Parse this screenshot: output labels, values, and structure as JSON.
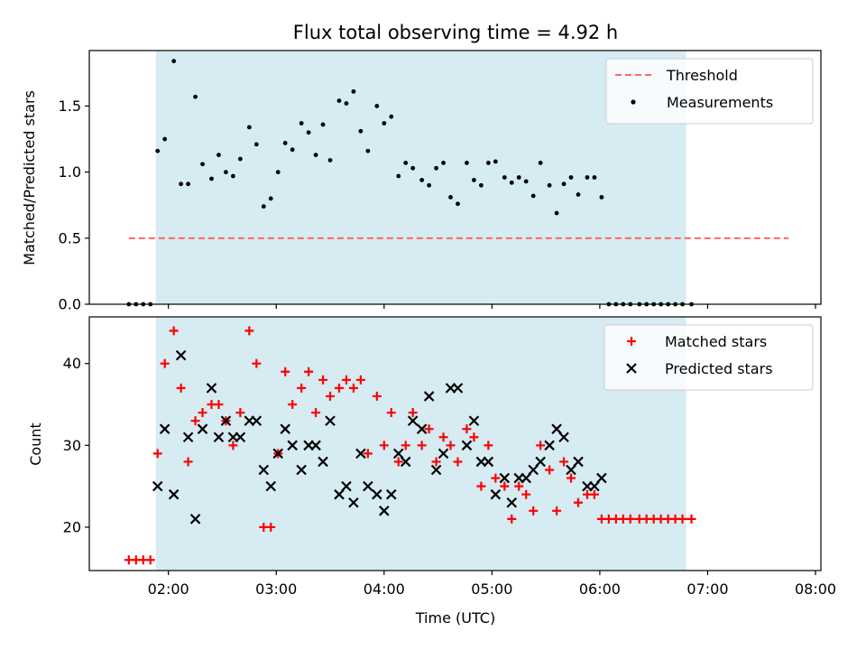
{
  "chart_data": [
    {
      "type": "scatter",
      "title": "Flux total observing time = 4.92 h",
      "xlabel": "",
      "ylabel": "Matched/Predicted stars",
      "xlim": [
        "01:16",
        "08:03"
      ],
      "ylim": [
        0,
        1.92
      ],
      "y_ticks": [
        0.0,
        0.5,
        1.0,
        1.5
      ],
      "y_tick_labels": [
        "0.0",
        "0.5",
        "1.0",
        "1.5"
      ],
      "grid": false,
      "legend_position": "top-right",
      "shaded_interval": {
        "start": "01:53",
        "end": "06:48",
        "color": "#add8e6"
      },
      "threshold": {
        "name": "Threshold",
        "value": 0.5,
        "x": [
          "01:38",
          "07:45"
        ],
        "color": "#ff6666",
        "style": "dashed"
      },
      "series": [
        {
          "name": "Measurements",
          "marker": "dot",
          "color": "#000000",
          "points": [
            [
              "01:38",
              0.0
            ],
            [
              "01:42",
              0.0
            ],
            [
              "01:46",
              0.0
            ],
            [
              "01:50",
              0.0
            ],
            [
              "01:54",
              1.16
            ],
            [
              "01:58",
              1.25
            ],
            [
              "02:03",
              1.84
            ],
            [
              "02:07",
              0.91
            ],
            [
              "02:11",
              0.91
            ],
            [
              "02:15",
              1.57
            ],
            [
              "02:19",
              1.06
            ],
            [
              "02:24",
              0.95
            ],
            [
              "02:28",
              1.13
            ],
            [
              "02:32",
              1.0
            ],
            [
              "02:36",
              0.97
            ],
            [
              "02:40",
              1.1
            ],
            [
              "02:45",
              1.34
            ],
            [
              "02:49",
              1.21
            ],
            [
              "02:53",
              0.74
            ],
            [
              "02:57",
              0.8
            ],
            [
              "03:01",
              1.0
            ],
            [
              "03:05",
              1.22
            ],
            [
              "03:09",
              1.17
            ],
            [
              "03:14",
              1.37
            ],
            [
              "03:18",
              1.3
            ],
            [
              "03:22",
              1.13
            ],
            [
              "03:26",
              1.36
            ],
            [
              "03:30",
              1.09
            ],
            [
              "03:35",
              1.54
            ],
            [
              "03:39",
              1.52
            ],
            [
              "03:43",
              1.61
            ],
            [
              "03:47",
              1.31
            ],
            [
              "03:51",
              1.16
            ],
            [
              "03:56",
              1.5
            ],
            [
              "04:00",
              1.37
            ],
            [
              "04:04",
              1.42
            ],
            [
              "04:08",
              0.97
            ],
            [
              "04:12",
              1.07
            ],
            [
              "04:16",
              1.03
            ],
            [
              "04:21",
              0.94
            ],
            [
              "04:25",
              0.9
            ],
            [
              "04:29",
              1.03
            ],
            [
              "04:33",
              1.07
            ],
            [
              "04:37",
              0.81
            ],
            [
              "04:41",
              0.76
            ],
            [
              "04:46",
              1.07
            ],
            [
              "04:50",
              0.94
            ],
            [
              "04:54",
              0.9
            ],
            [
              "04:58",
              1.07
            ],
            [
              "05:02",
              1.08
            ],
            [
              "05:07",
              0.96
            ],
            [
              "05:11",
              0.92
            ],
            [
              "05:15",
              0.96
            ],
            [
              "05:19",
              0.93
            ],
            [
              "05:23",
              0.82
            ],
            [
              "05:27",
              1.07
            ],
            [
              "05:32",
              0.9
            ],
            [
              "05:36",
              0.69
            ],
            [
              "05:40",
              0.91
            ],
            [
              "05:44",
              0.96
            ],
            [
              "05:48",
              0.83
            ],
            [
              "05:53",
              0.96
            ],
            [
              "05:57",
              0.96
            ],
            [
              "06:01",
              0.81
            ],
            [
              "06:05",
              0.0
            ],
            [
              "06:09",
              0.0
            ],
            [
              "06:13",
              0.0
            ],
            [
              "06:17",
              0.0
            ],
            [
              "06:22",
              0.0
            ],
            [
              "06:26",
              0.0
            ],
            [
              "06:30",
              0.0
            ],
            [
              "06:34",
              0.0
            ],
            [
              "06:38",
              0.0
            ],
            [
              "06:42",
              0.0
            ],
            [
              "06:46",
              0.0
            ],
            [
              "06:51",
              0.0
            ]
          ]
        }
      ]
    },
    {
      "type": "scatter",
      "title": "",
      "xlabel": "Time (UTC)",
      "ylabel": "Count",
      "xlim": [
        "01:16",
        "08:03"
      ],
      "ylim": [
        14.7,
        45.7
      ],
      "x_ticks": [
        "02:00",
        "03:00",
        "04:00",
        "05:00",
        "06:00",
        "07:00",
        "08:00"
      ],
      "y_ticks": [
        20,
        30,
        40
      ],
      "y_tick_labels": [
        "20",
        "30",
        "40"
      ],
      "grid": false,
      "legend_position": "top-right",
      "shaded_interval": {
        "start": "01:53",
        "end": "06:48",
        "color": "#add8e6"
      },
      "series": [
        {
          "name": "Matched stars",
          "marker": "plus",
          "color": "#ff0000",
          "points": [
            [
              "01:38",
              16
            ],
            [
              "01:42",
              16
            ],
            [
              "01:46",
              16
            ],
            [
              "01:50",
              16
            ],
            [
              "01:54",
              29
            ],
            [
              "01:58",
              40
            ],
            [
              "02:03",
              44
            ],
            [
              "02:07",
              37
            ],
            [
              "02:11",
              28
            ],
            [
              "02:15",
              33
            ],
            [
              "02:19",
              34
            ],
            [
              "02:24",
              35
            ],
            [
              "02:28",
              35
            ],
            [
              "02:32",
              33
            ],
            [
              "02:36",
              30
            ],
            [
              "02:40",
              34
            ],
            [
              "02:45",
              44
            ],
            [
              "02:49",
              40
            ],
            [
              "02:53",
              20
            ],
            [
              "02:57",
              20
            ],
            [
              "03:01",
              29
            ],
            [
              "03:05",
              39
            ],
            [
              "03:09",
              35
            ],
            [
              "03:14",
              37
            ],
            [
              "03:18",
              39
            ],
            [
              "03:22",
              34
            ],
            [
              "03:26",
              38
            ],
            [
              "03:30",
              36
            ],
            [
              "03:35",
              37
            ],
            [
              "03:39",
              38
            ],
            [
              "03:43",
              37
            ],
            [
              "03:47",
              38
            ],
            [
              "03:51",
              29
            ],
            [
              "03:56",
              36
            ],
            [
              "04:00",
              30
            ],
            [
              "04:04",
              34
            ],
            [
              "04:08",
              28
            ],
            [
              "04:12",
              30
            ],
            [
              "04:16",
              34
            ],
            [
              "04:21",
              30
            ],
            [
              "04:25",
              32
            ],
            [
              "04:29",
              28
            ],
            [
              "04:33",
              31
            ],
            [
              "04:37",
              30
            ],
            [
              "04:41",
              28
            ],
            [
              "04:46",
              32
            ],
            [
              "04:50",
              31
            ],
            [
              "04:54",
              25
            ],
            [
              "04:58",
              30
            ],
            [
              "05:02",
              26
            ],
            [
              "05:07",
              25
            ],
            [
              "05:11",
              21
            ],
            [
              "05:15",
              25
            ],
            [
              "05:19",
              24
            ],
            [
              "05:23",
              22
            ],
            [
              "05:27",
              30
            ],
            [
              "05:32",
              27
            ],
            [
              "05:36",
              22
            ],
            [
              "05:40",
              28
            ],
            [
              "05:44",
              26
            ],
            [
              "05:48",
              23
            ],
            [
              "05:53",
              24
            ],
            [
              "05:57",
              24
            ],
            [
              "06:01",
              21
            ],
            [
              "06:05",
              21
            ],
            [
              "06:09",
              21
            ],
            [
              "06:13",
              21
            ],
            [
              "06:17",
              21
            ],
            [
              "06:22",
              21
            ],
            [
              "06:26",
              21
            ],
            [
              "06:30",
              21
            ],
            [
              "06:34",
              21
            ],
            [
              "06:38",
              21
            ],
            [
              "06:42",
              21
            ],
            [
              "06:46",
              21
            ],
            [
              "06:51",
              21
            ]
          ]
        },
        {
          "name": "Predicted stars",
          "marker": "x",
          "color": "#000000",
          "points": [
            [
              "01:54",
              25
            ],
            [
              "01:58",
              32
            ],
            [
              "02:03",
              24
            ],
            [
              "02:07",
              41
            ],
            [
              "02:11",
              31
            ],
            [
              "02:15",
              21
            ],
            [
              "02:19",
              32
            ],
            [
              "02:24",
              37
            ],
            [
              "02:28",
              31
            ],
            [
              "02:32",
              33
            ],
            [
              "02:36",
              31
            ],
            [
              "02:40",
              31
            ],
            [
              "02:45",
              33
            ],
            [
              "02:49",
              33
            ],
            [
              "02:53",
              27
            ],
            [
              "02:57",
              25
            ],
            [
              "03:01",
              29
            ],
            [
              "03:05",
              32
            ],
            [
              "03:09",
              30
            ],
            [
              "03:14",
              27
            ],
            [
              "03:18",
              30
            ],
            [
              "03:22",
              30
            ],
            [
              "03:26",
              28
            ],
            [
              "03:30",
              33
            ],
            [
              "03:35",
              24
            ],
            [
              "03:39",
              25
            ],
            [
              "03:43",
              23
            ],
            [
              "03:47",
              29
            ],
            [
              "03:51",
              25
            ],
            [
              "03:56",
              24
            ],
            [
              "04:00",
              22
            ],
            [
              "04:04",
              24
            ],
            [
              "04:08",
              29
            ],
            [
              "04:12",
              28
            ],
            [
              "04:16",
              33
            ],
            [
              "04:21",
              32
            ],
            [
              "04:25",
              36
            ],
            [
              "04:29",
              27
            ],
            [
              "04:33",
              29
            ],
            [
              "04:37",
              37
            ],
            [
              "04:41",
              37
            ],
            [
              "04:46",
              30
            ],
            [
              "04:50",
              33
            ],
            [
              "04:54",
              28
            ],
            [
              "04:58",
              28
            ],
            [
              "05:02",
              24
            ],
            [
              "05:07",
              26
            ],
            [
              "05:11",
              23
            ],
            [
              "05:15",
              26
            ],
            [
              "05:19",
              26
            ],
            [
              "05:23",
              27
            ],
            [
              "05:27",
              28
            ],
            [
              "05:32",
              30
            ],
            [
              "05:36",
              32
            ],
            [
              "05:40",
              31
            ],
            [
              "05:44",
              27
            ],
            [
              "05:48",
              28
            ],
            [
              "05:53",
              25
            ],
            [
              "05:57",
              25
            ],
            [
              "06:01",
              26
            ]
          ]
        }
      ]
    }
  ]
}
